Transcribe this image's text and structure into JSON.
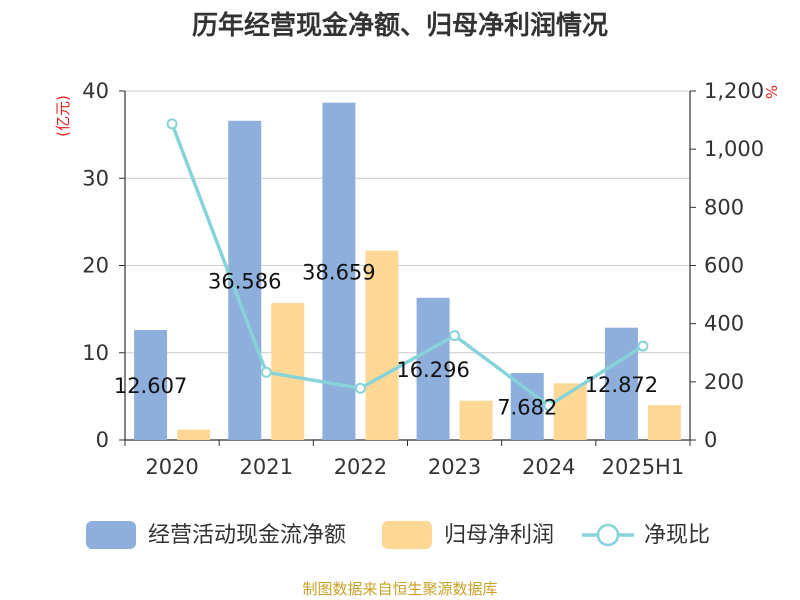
{
  "chart_data": {
    "type": "bar",
    "title": "历年经营现金净额、归母净利润情况",
    "categories": [
      "2020",
      "2021",
      "2022",
      "2023",
      "2024",
      "2025H1"
    ],
    "y_left": {
      "unit": "(亿元)",
      "range": [
        0,
        40
      ],
      "ticks": [
        "0",
        "10",
        "20",
        "30",
        "40"
      ]
    },
    "y_right": {
      "unit": "%",
      "range": [
        0,
        1200
      ],
      "ticks": [
        "0",
        "200",
        "400",
        "600",
        "800",
        "1,000",
        "1,200"
      ]
    },
    "series": [
      {
        "name": "经营活动现金流净额",
        "type": "bar",
        "axis": "left",
        "color": "#8eaedb",
        "values": [
          12.607,
          36.586,
          38.659,
          16.296,
          7.682,
          12.872
        ],
        "labels": [
          "12.607",
          "36.586",
          "38.659",
          "16.296",
          "7.682",
          "12.872"
        ]
      },
      {
        "name": "归母净利润",
        "type": "bar",
        "axis": "left",
        "color": "#ffd896",
        "values": [
          1.2,
          15.7,
          21.7,
          4.5,
          6.5,
          4.0
        ]
      },
      {
        "name": "净现比",
        "type": "line",
        "axis": "right",
        "color": "#86d3d9",
        "values": [
          1087,
          233,
          178,
          359,
          118,
          323
        ]
      }
    ],
    "grid": true,
    "legend": "bottom"
  },
  "source": "制图数据来自恒生聚源数据库"
}
